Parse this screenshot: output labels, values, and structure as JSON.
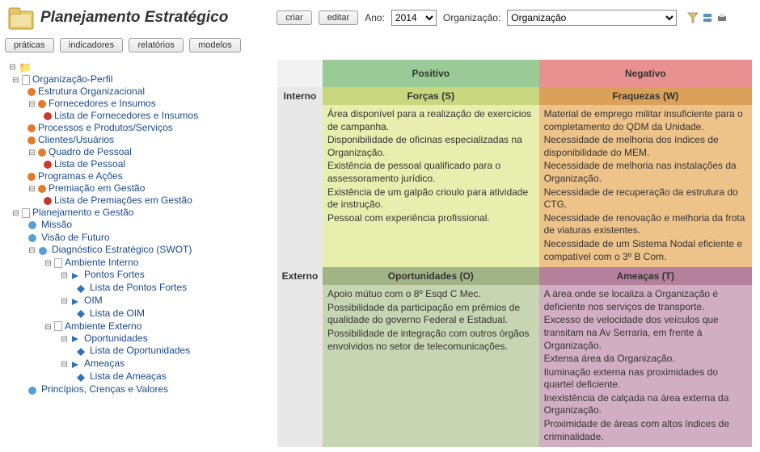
{
  "header": {
    "title": "Planejamento Estratégico",
    "btn_create": "criar",
    "btn_edit": "editar",
    "year_label": "Ano:",
    "year_value": "2014",
    "org_label": "Organização:",
    "org_value": "Organização"
  },
  "tabs": {
    "practices": "práticas",
    "indicators": "indicadores",
    "reports": "relatórios",
    "models": "modelos"
  },
  "tree": {
    "n_org_perfil": "Organização-Perfil",
    "n_estrutura": "Estrutura Organizacional",
    "n_fornecedores": "Fornecedores e Insumos",
    "n_lista_fornecedores": "Lista de Fornecedores e Insumos",
    "n_processos": "Processos e Produtos/Serviços",
    "n_clientes": "Clientes/Usuários",
    "n_quadro": "Quadro de Pessoal",
    "n_lista_pessoal": "Lista de Pessoal",
    "n_programas": "Programas e Ações",
    "n_premiacao": "Premiação em Gestão",
    "n_lista_premiacoes": "Lista de Premiações em Gestão",
    "n_planejamento": "Planejamento e Gestão",
    "n_missao": "Missão",
    "n_visao": "Visão de Futuro",
    "n_swot": "Diagnóstico Estratégico (SWOT)",
    "n_amb_int": "Ambiente Interno",
    "n_pontos_fortes": "Pontos Fortes",
    "n_lista_pontos_fortes": "Lista de Pontos Fortes",
    "n_oim": "OIM",
    "n_lista_oim": "Lista de OIM",
    "n_amb_ext": "Ambiente Externo",
    "n_oportunidades": "Oportunidades",
    "n_lista_oportunidades": "Lista de Oportunidades",
    "n_ameacas": "Ameaças",
    "n_lista_ameacas": "Lista de Ameaças",
    "n_principios": "Princípios, Crenças e Valores"
  },
  "swot": {
    "pos_header": "Positivo",
    "neg_header": "Negativo",
    "forcas_header": "Forças (S)",
    "fraquezas_header": "Fraquezas (W)",
    "oportunidades_header": "Oportunidades (O)",
    "ameacas_header": "Ameaças (T)",
    "interno_label": "Interno",
    "externo_label": "Externo",
    "colors": {
      "pos_header_bg": "#9acb97",
      "neg_header_bg": "#e99090",
      "s_header_bg": "#c9d87e",
      "w_header_bg": "#dba05a",
      "o_header_bg": "#a2b386",
      "t_header_bg": "#b5809b",
      "s_cell_bg": "#e8eeae",
      "w_cell_bg": "#eec38a",
      "o_cell_bg": "#c8d5b2",
      "t_cell_bg": "#d2aec3",
      "rowlabel_bg": "#e8e8e8"
    },
    "forcas": [
      "Área disponível para a realização de exercícios de campanha.",
      "Disponibilidade de oficinas especializadas na Organização.",
      "Existência de pessoal qualificado para o assessoramento jurídico.",
      "Existência de um galpão crioulo para atividade de instrução.",
      "Pessoal com experiência profissional."
    ],
    "fraquezas": [
      "Material de emprego militar insuficiente para o completamento do QDM da Unidade.",
      "Necessidade de melhoria dos índices de disponibilidade do MEM.",
      "Necessidade de melhoria nas instalações da Organização.",
      "Necessidade de recuperação da estrutura do CTG.",
      "Necessidade de renovação e melhoria da frota de viaturas existentes.",
      "Necessidade de um Sistema Nodal eficiente e compatível com o 3º B Com."
    ],
    "oportunidades": [
      "Apoio mútuo com o 8º Esqd C Mec.",
      "Possibilidade da participação em prêmios de qualidade do governo Federal e Estadual.",
      "Possibilidade de integração com outros órgãos envolvidos no setor de telecomunicações."
    ],
    "ameacas": [
      "A área onde se localiza a Organização é deficiente nos serviços de transporte.",
      "Excesso de velocidade dos veículos que transitam na Av Serraria, em frente à Organização.",
      "Extensa área da Organização.",
      "Iluminação externa nas proximidades do quartel deficiente.",
      "Inexistência de calçada na área externa da Organização.",
      "Proximidade de áreas com altos índices de criminalidade."
    ]
  }
}
